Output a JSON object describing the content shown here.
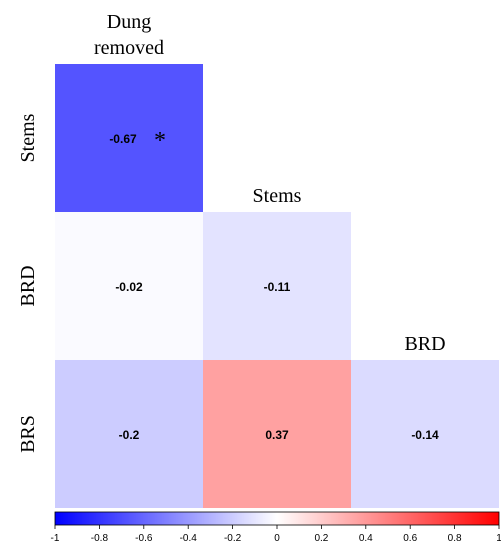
{
  "chart_data": {
    "type": "heatmap",
    "layout": "lower-triangle",
    "col_labels": [
      [
        "Dung",
        "removed"
      ],
      [
        "Stems"
      ],
      [
        "BRD"
      ]
    ],
    "row_labels": [
      "Stems",
      "BRD",
      "BRS"
    ],
    "cells": [
      {
        "row": 0,
        "col": 0,
        "value": -0.67,
        "label": "-0.67",
        "significance": "*"
      },
      {
        "row": 1,
        "col": 0,
        "value": -0.02,
        "label": "-0.02"
      },
      {
        "row": 1,
        "col": 1,
        "value": -0.11,
        "label": "-0.11"
      },
      {
        "row": 2,
        "col": 0,
        "value": -0.2,
        "label": "-0.2"
      },
      {
        "row": 2,
        "col": 1,
        "value": 0.37,
        "label": "0.37"
      },
      {
        "row": 2,
        "col": 2,
        "value": -0.14,
        "label": "-0.14"
      }
    ],
    "colorbar": {
      "range": [
        -1,
        1
      ],
      "ticks": [
        "-1",
        "-0.8",
        "-0.6",
        "-0.4",
        "-0.2",
        "0",
        "0.2",
        "0.4",
        "0.6",
        "0.8",
        "1"
      ],
      "colors": {
        "neg": "#0000ff",
        "mid": "#ffffff",
        "pos": "#ff0000"
      }
    }
  }
}
